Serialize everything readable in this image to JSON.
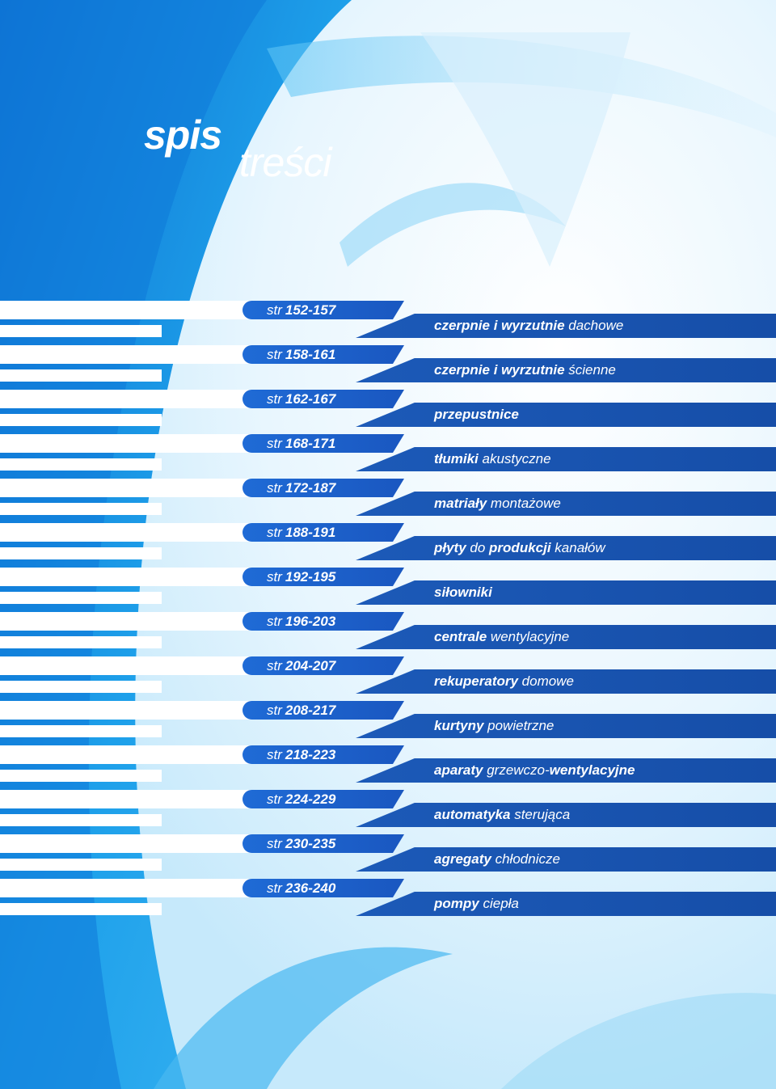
{
  "title": {
    "bold": "spis",
    "light": "treści"
  },
  "label_prefix": "str",
  "colors": {
    "primary_blue": "#1a57c0",
    "light_blue": "#bfe6fb",
    "white": "#ffffff"
  },
  "items": [
    {
      "pages": "152-157",
      "parts": [
        {
          "t": "czerpnie i wyrzutnie",
          "b": true
        },
        {
          "t": " dachowe",
          "b": false
        }
      ]
    },
    {
      "pages": "158-161",
      "parts": [
        {
          "t": "czerpnie i wyrzutnie",
          "b": true
        },
        {
          "t": " ścienne",
          "b": false
        }
      ]
    },
    {
      "pages": "162-167",
      "parts": [
        {
          "t": "przepustnice",
          "b": true
        }
      ]
    },
    {
      "pages": "168-171",
      "parts": [
        {
          "t": "tłumiki",
          "b": true
        },
        {
          "t": " akustyczne",
          "b": false
        }
      ]
    },
    {
      "pages": "172-187",
      "parts": [
        {
          "t": "matriały",
          "b": true
        },
        {
          "t": " montażowe",
          "b": false
        }
      ]
    },
    {
      "pages": "188-191",
      "parts": [
        {
          "t": "płyty",
          "b": true
        },
        {
          "t": " do ",
          "b": false
        },
        {
          "t": "produkcji",
          "b": true
        },
        {
          "t": " kanałów",
          "b": false
        }
      ]
    },
    {
      "pages": "192-195",
      "parts": [
        {
          "t": "siłowniki",
          "b": true
        }
      ]
    },
    {
      "pages": "196-203",
      "parts": [
        {
          "t": "centrale",
          "b": true
        },
        {
          "t": " wentylacyjne",
          "b": false
        }
      ]
    },
    {
      "pages": "204-207",
      "parts": [
        {
          "t": "rekuperatory",
          "b": true
        },
        {
          "t": " domowe",
          "b": false
        }
      ]
    },
    {
      "pages": "208-217",
      "parts": [
        {
          "t": "kurtyny",
          "b": true
        },
        {
          "t": " powietrzne",
          "b": false
        }
      ]
    },
    {
      "pages": "218-223",
      "parts": [
        {
          "t": "aparaty",
          "b": true
        },
        {
          "t": " grzewczo-",
          "b": false
        },
        {
          "t": "wentylacyjne",
          "b": true
        }
      ]
    },
    {
      "pages": "224-229",
      "parts": [
        {
          "t": "automatyka",
          "b": true
        },
        {
          "t": " sterująca",
          "b": false
        }
      ]
    },
    {
      "pages": "230-235",
      "parts": [
        {
          "t": "agregaty",
          "b": true
        },
        {
          "t": " chłodnicze",
          "b": false
        }
      ]
    },
    {
      "pages": "236-240",
      "parts": [
        {
          "t": "pompy",
          "b": true
        },
        {
          "t": " ciepła",
          "b": false
        }
      ]
    }
  ]
}
